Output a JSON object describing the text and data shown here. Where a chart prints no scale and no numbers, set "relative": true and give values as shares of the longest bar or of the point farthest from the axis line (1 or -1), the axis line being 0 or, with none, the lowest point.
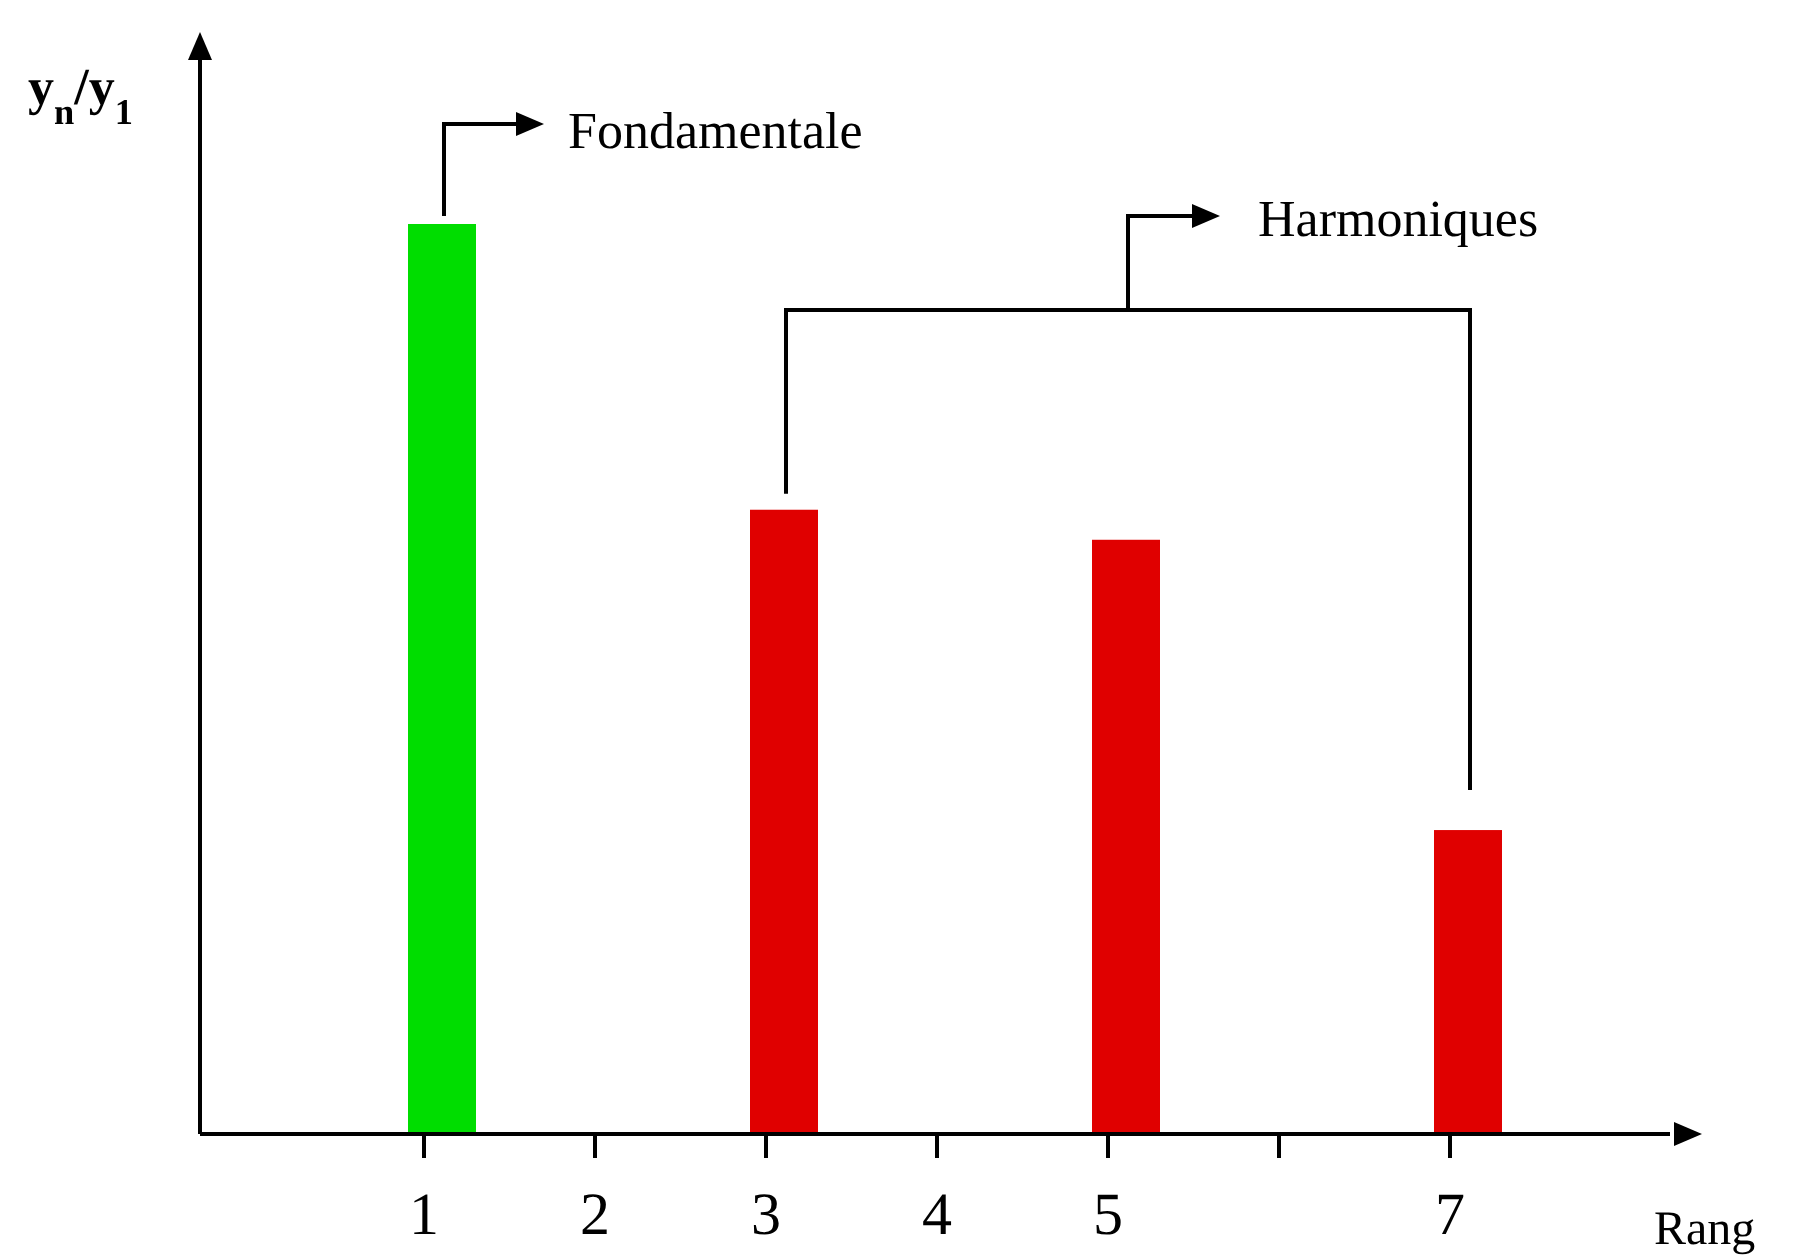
{
  "chart_data": {
    "type": "bar",
    "relative": true,
    "xlabel": "Rang",
    "ylabel": "y$_{n}$/y$_{1}$",
    "categories": [
      "1",
      "2",
      "3",
      "4",
      "5",
      null,
      "7"
    ],
    "values": [
      1,
      null,
      0.686,
      null,
      0.653,
      null,
      0.334
    ],
    "colors": [
      "#00dd00",
      null,
      "#e00000",
      null,
      "#e00000",
      null,
      "#e00000"
    ],
    "annotations": [
      "Fondamentale",
      "Harmoniques"
    ]
  }
}
